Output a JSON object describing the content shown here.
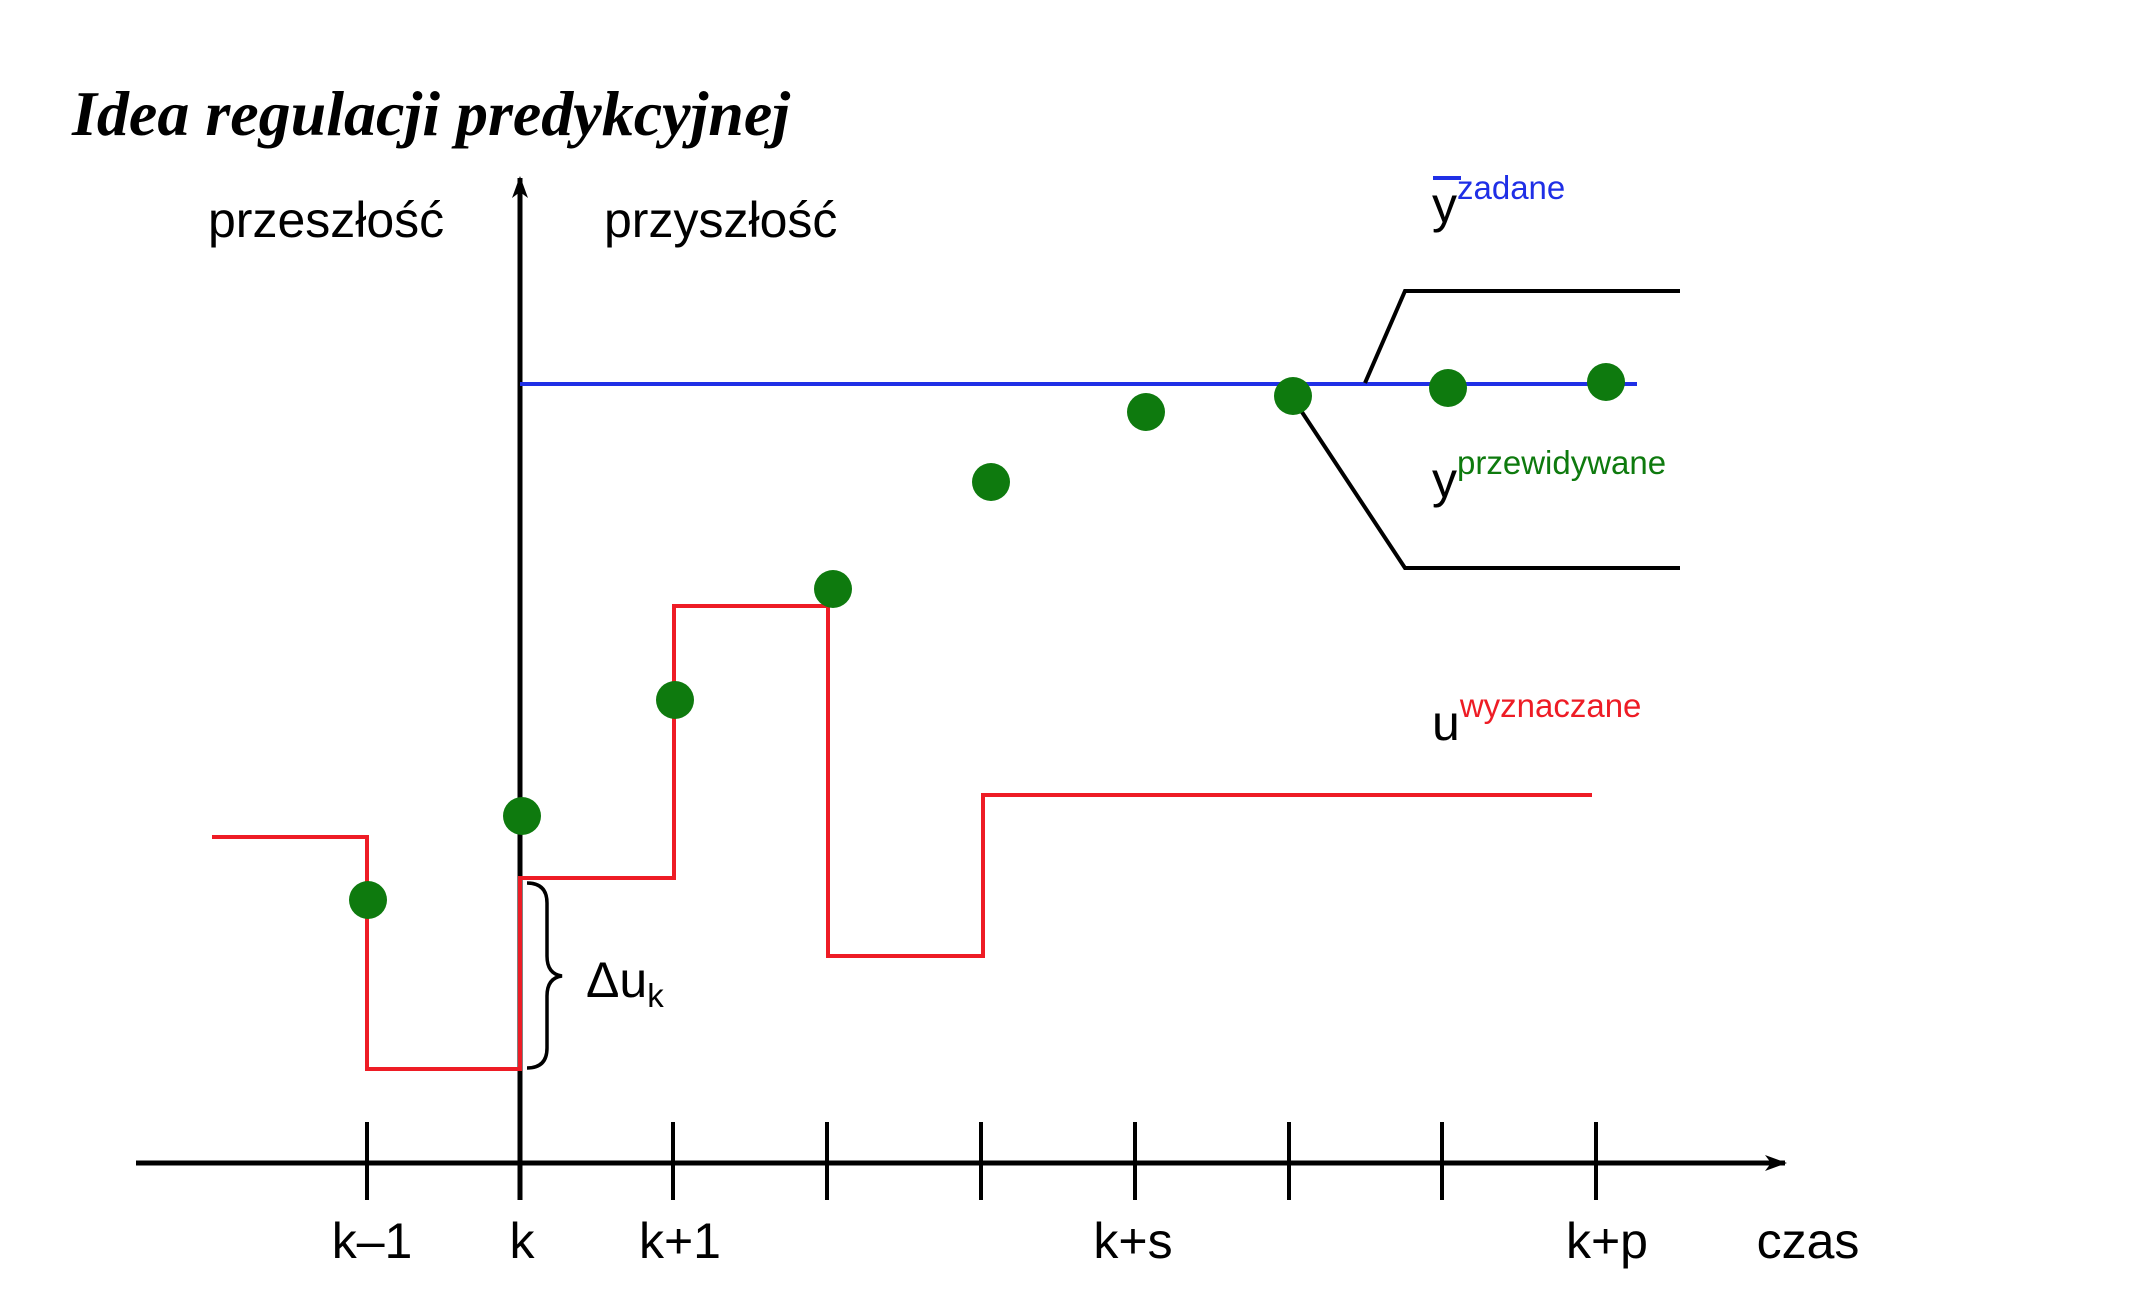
{
  "title": "Idea regulacji predykcyjnej",
  "regions": {
    "past": "przeszłość",
    "future": "przyszłość"
  },
  "axis": {
    "x_label": "czas",
    "tick_labels": [
      "k–1",
      "k",
      "k+1",
      "",
      "",
      "k+s",
      "",
      "",
      "k+p"
    ]
  },
  "legend": {
    "setpoint": {
      "base": "y",
      "superscript": "zadane",
      "color": "#1f2fe6"
    },
    "predicted": {
      "base": "y",
      "superscript": "przewidywane",
      "color": "#0e7a0e"
    },
    "control": {
      "base": "u",
      "superscript": "wyznaczane",
      "color": "#ee1c25"
    }
  },
  "delta_label": {
    "base": "Δu",
    "subscript": "k"
  },
  "colors": {
    "axis": "#000000",
    "setpoint": "#1f2fe6",
    "predicted": "#0e7a0e",
    "control": "#ee1c25"
  }
}
